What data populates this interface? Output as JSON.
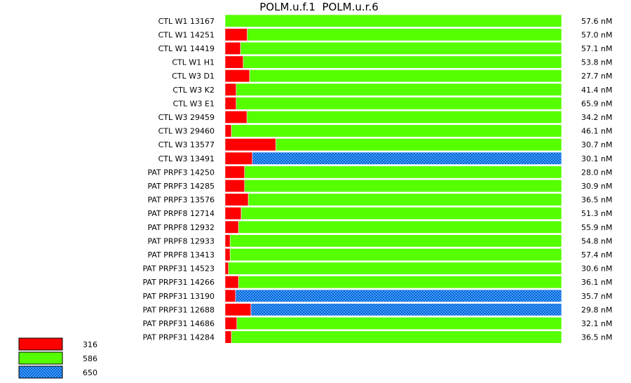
{
  "chart_data": {
    "type": "bar",
    "stacked": true,
    "normalized": true,
    "orientation": "horizontal",
    "title": "POLM.u.f.1  POLM.u.r.6",
    "categories": [
      "CTL W1 13167",
      "CTL W1 14251",
      "CTL W1 14419",
      "CTL W1 H1",
      "CTL W3 D1",
      "CTL W3 K2",
      "CTL W3 E1",
      "CTL W3 29459",
      "CTL W3 29460",
      "CTL W3 13577",
      "CTL W3 13491",
      "PAT PRPF3 14250",
      "PAT PRPF3 14285",
      "PAT PRPF3 13576",
      "PAT PRPF8 12714",
      "PAT PRPF8 12932",
      "PAT PRPF8 12933",
      "PAT PRPF8 13413",
      "PAT PRPF31 14523",
      "PAT PRPF31 14266",
      "PAT PRPF31 13190",
      "PAT PRPF31 12688",
      "PAT PRPF31 14686",
      "PAT PRPF31 14284"
    ],
    "totals": [
      "57.6 nM",
      "57.0 nM",
      "57.1 nM",
      "53.8 nM",
      "27.7 nM",
      "41.4 nM",
      "65.9 nM",
      "34.2 nM",
      "46.1 nM",
      "30.7 nM",
      "30.1 nM",
      "28.0 nM",
      "30.9 nM",
      "36.5 nM",
      "51.3 nM",
      "55.9 nM",
      "54.8 nM",
      "57.4 nM",
      "30.6 nM",
      "36.1 nM",
      "35.7 nM",
      "29.8 nM",
      "32.1 nM",
      "36.5 nM"
    ],
    "series": [
      {
        "name": "316",
        "color": "#ff0000",
        "pattern": "solid",
        "values": [
          0.0,
          0.066,
          0.046,
          0.054,
          0.073,
          0.033,
          0.033,
          0.065,
          0.019,
          0.151,
          0.081,
          0.058,
          0.058,
          0.069,
          0.048,
          0.04,
          0.015,
          0.015,
          0.01,
          0.04,
          0.031,
          0.077,
          0.035,
          0.019
        ]
      },
      {
        "name": "586",
        "color": "#55ff00",
        "pattern": "solid",
        "values": [
          1.0,
          0.934,
          0.954,
          0.946,
          0.927,
          0.967,
          0.967,
          0.935,
          0.981,
          0.849,
          0.0,
          0.942,
          0.942,
          0.931,
          0.952,
          0.96,
          0.985,
          0.985,
          0.99,
          0.96,
          0.0,
          0.0,
          0.965,
          0.981
        ]
      },
      {
        "name": "650",
        "color": "#1e90ff",
        "pattern": "checker",
        "values": [
          0.0,
          0.0,
          0.0,
          0.0,
          0.0,
          0.0,
          0.0,
          0.0,
          0.0,
          0.0,
          0.919,
          0.0,
          0.0,
          0.0,
          0.0,
          0.0,
          0.0,
          0.0,
          0.0,
          0.0,
          0.969,
          0.923,
          0.0,
          0.0
        ]
      }
    ],
    "legend_position": "bottom-left",
    "grid": false
  }
}
